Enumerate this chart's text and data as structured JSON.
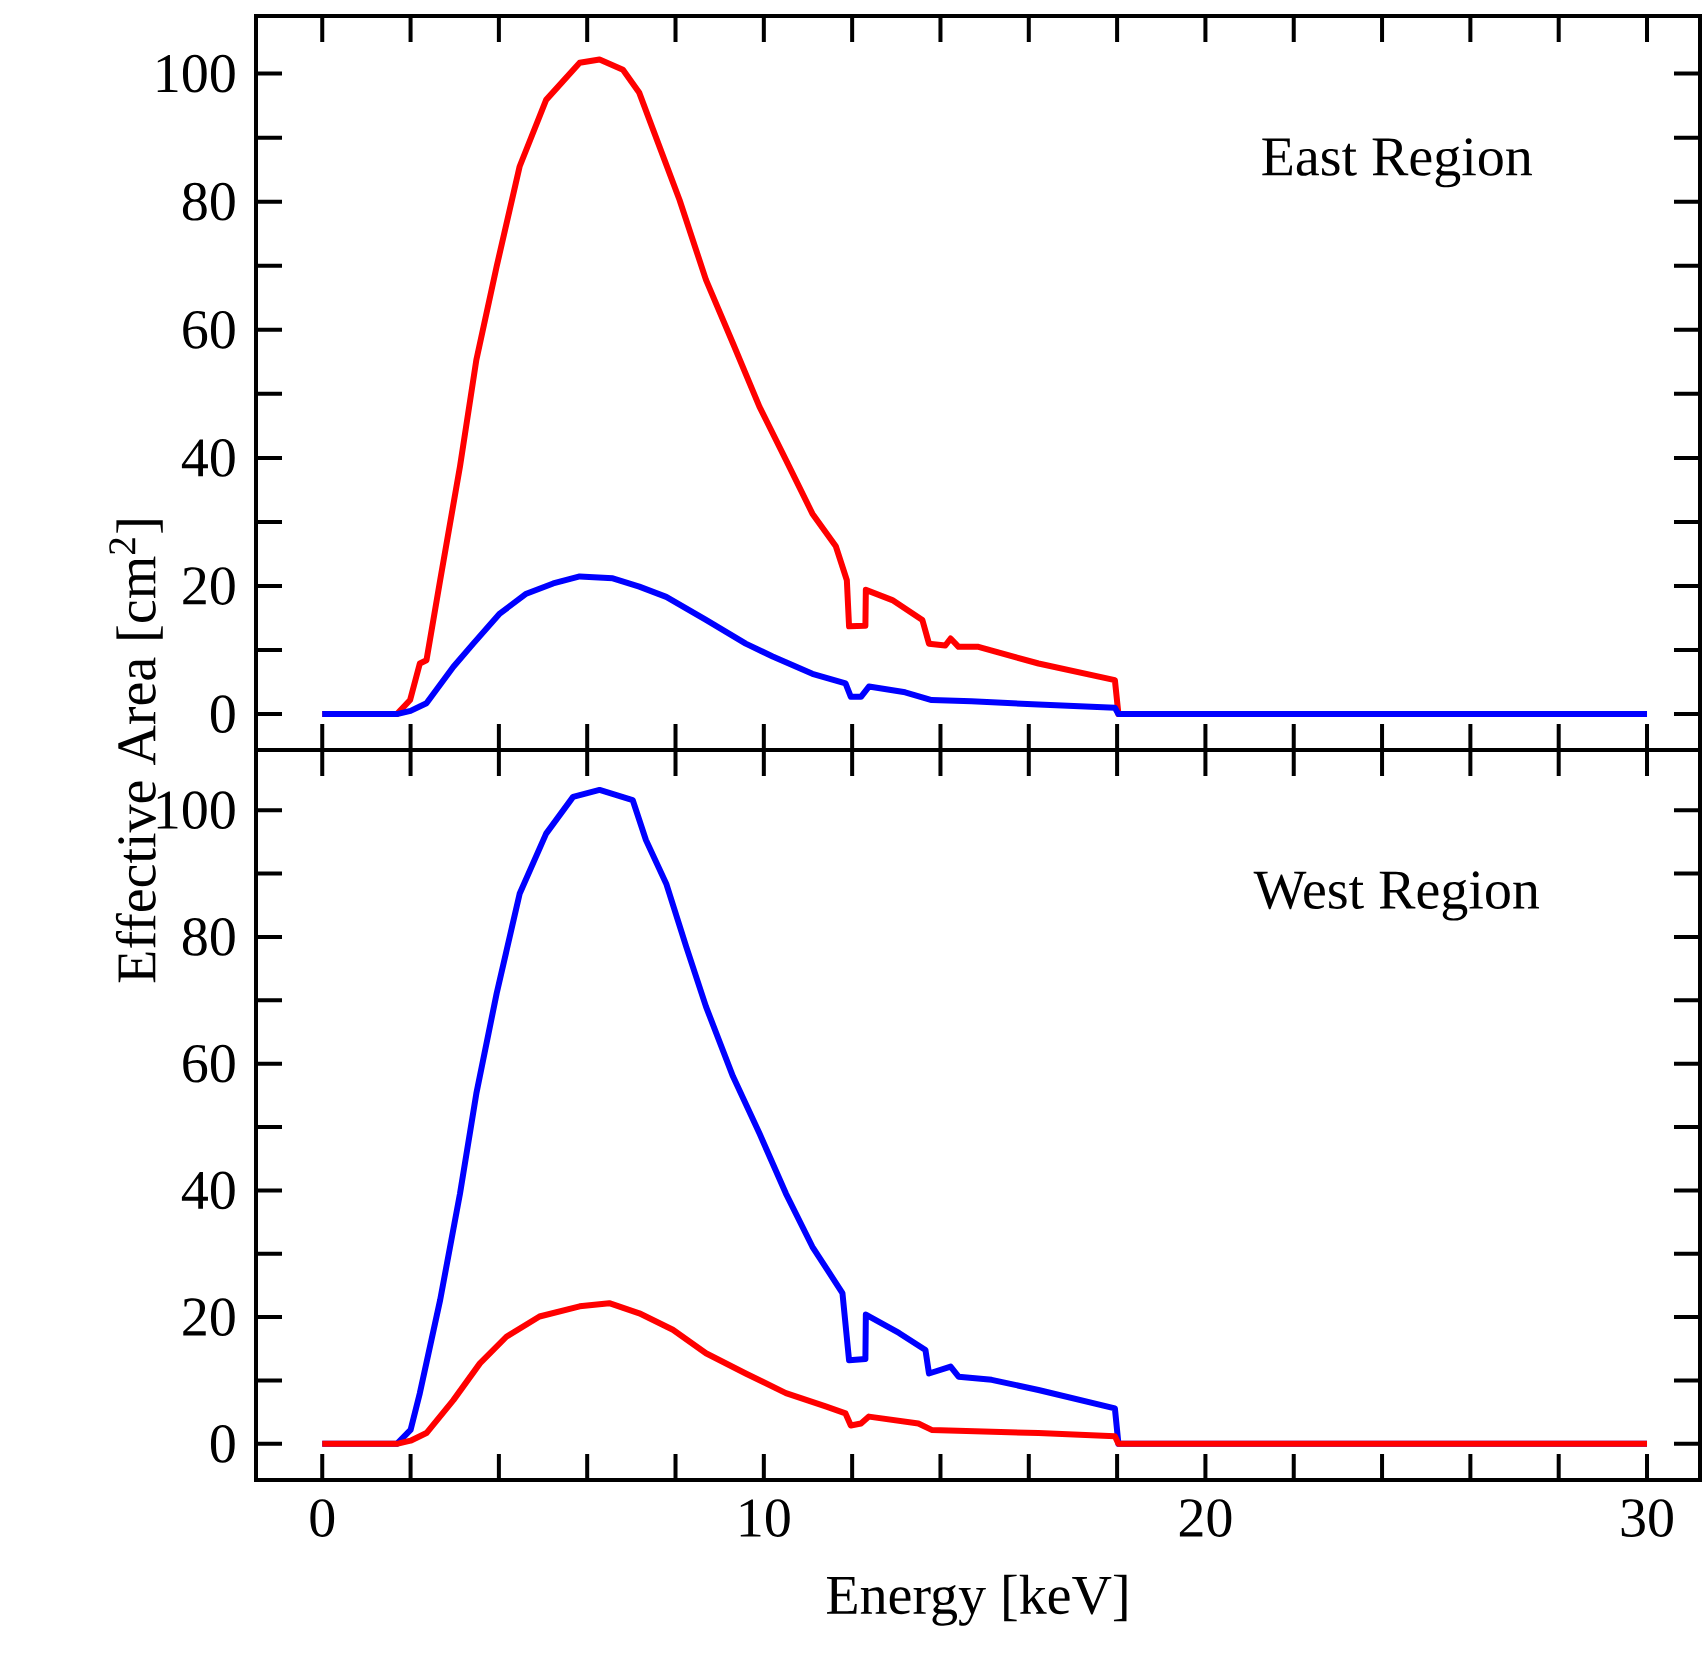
{
  "chart_data": [
    {
      "type": "line",
      "xlim": [
        -1.5,
        31.2
      ],
      "ylim": [
        -5.6,
        109
      ],
      "xticks": [
        0,
        {
          "value": 2,
          "label": null
        },
        {
          "value": 4,
          "label": null
        },
        {
          "value": 6,
          "label": null
        },
        {
          "value": 8,
          "label": null
        },
        10,
        {
          "value": 12,
          "label": null
        },
        {
          "value": 14,
          "label": null
        },
        {
          "value": 16,
          "label": null
        },
        {
          "value": 18,
          "label": null
        },
        20,
        {
          "value": 22,
          "label": null
        },
        {
          "value": 24,
          "label": null
        },
        {
          "value": 26,
          "label": null
        },
        {
          "value": 28,
          "label": null
        },
        30
      ],
      "yticks": [
        0,
        {
          "value": 10,
          "label": null
        },
        20,
        {
          "value": 30,
          "label": null
        },
        40,
        {
          "value": 50,
          "label": null
        },
        60,
        {
          "value": 70,
          "label": null
        },
        80,
        {
          "value": 90,
          "label": null
        },
        100
      ],
      "tick_labels": "y",
      "ylabel": "Effective Area [cm$^{2}$]",
      "annotations": [
        "East Region"
      ],
      "line_style": "solid",
      "marker": "none",
      "series": [
        {
          "color": "#ff0000",
          "x": [
            0,
            1.69,
            1.99,
            2.21,
            2.36,
            2.67,
            3.12,
            3.49,
            3.95,
            4.47,
            5.07,
            5.83,
            6.28,
            6.81,
            7.18,
            7.49,
            8.09,
            8.69,
            9.3,
            9.9,
            10.5,
            11.1,
            11.63,
            11.88,
            11.93,
            12.3,
            12.31,
            12.91,
            13.59,
            13.74,
            14.11,
            14.23,
            14.41,
            14.86,
            16.22,
            17.95,
            18.03,
            30
          ],
          "values": [
            0,
            0,
            2.2,
            7.9,
            8.4,
            20.9,
            38.7,
            55.3,
            69.9,
            85.5,
            95.9,
            101.7,
            102.2,
            100.6,
            97,
            91.3,
            80.3,
            67.8,
            57.9,
            48,
            39.7,
            31.3,
            26.2,
            20.9,
            13.7,
            13.8,
            19.4,
            17.8,
            14.7,
            11,
            10.7,
            11.8,
            10.5,
            10.5,
            7.9,
            5.3,
            0,
            0
          ]
        },
        {
          "color": "#0000ff",
          "x": [
            0,
            1.69,
            2.0,
            2.36,
            2.97,
            3.42,
            4.02,
            4.62,
            5.23,
            5.83,
            6.58,
            7.18,
            7.79,
            8.69,
            9.59,
            10.2,
            11.1,
            11.85,
            11.97,
            12.2,
            12.38,
            13.2,
            13.8,
            14.7,
            16.22,
            17.95,
            18.03,
            30
          ],
          "values": [
            0,
            0,
            0.5,
            1.7,
            7.4,
            11,
            15.7,
            18.8,
            20.4,
            21.5,
            21.2,
            19.9,
            18.3,
            14.7,
            11,
            9,
            6.3,
            4.8,
            2.7,
            2.7,
            4.3,
            3.4,
            2.2,
            2.0,
            1.5,
            1.0,
            0,
            0
          ]
        }
      ]
    },
    {
      "type": "line",
      "xlim": [
        -1.5,
        31.2
      ],
      "ylim": [
        -5.7,
        109.5
      ],
      "xticks": [
        0,
        {
          "value": 2,
          "label": null
        },
        {
          "value": 4,
          "label": null
        },
        {
          "value": 6,
          "label": null
        },
        {
          "value": 8,
          "label": null
        },
        10,
        {
          "value": 12,
          "label": null
        },
        {
          "value": 14,
          "label": null
        },
        {
          "value": 16,
          "label": null
        },
        {
          "value": 18,
          "label": null
        },
        20,
        {
          "value": 22,
          "label": null
        },
        {
          "value": 24,
          "label": null
        },
        {
          "value": 26,
          "label": null
        },
        {
          "value": 28,
          "label": null
        },
        30
      ],
      "yticks": [
        0,
        {
          "value": 10,
          "label": null
        },
        20,
        {
          "value": 30,
          "label": null
        },
        40,
        {
          "value": 50,
          "label": null
        },
        60,
        {
          "value": 70,
          "label": null
        },
        80,
        {
          "value": 90,
          "label": null
        },
        100
      ],
      "xlabel": "Energy [keV]",
      "annotations": [
        "West Region"
      ],
      "line_style": "solid",
      "marker": "none",
      "series": [
        {
          "color": "#0000ff",
          "x": [
            0,
            1.69,
            2.0,
            2.21,
            2.67,
            3.12,
            3.49,
            3.95,
            4.47,
            5.07,
            5.68,
            6.28,
            7.03,
            7.33,
            7.79,
            8.24,
            8.69,
            9.3,
            9.9,
            10.5,
            11.1,
            11.78,
            11.93,
            12.3,
            12.31,
            13.06,
            13.66,
            13.74,
            14.23,
            14.41,
            15.16,
            16.22,
            17.95,
            18.03,
            30
          ],
          "values": [
            0,
            0,
            2.2,
            8.0,
            22.7,
            39.5,
            55.3,
            71.1,
            86.8,
            96.3,
            102.1,
            103.2,
            101.6,
            95.3,
            88.4,
            78.5,
            69,
            58,
            49,
            39.5,
            31.1,
            23.8,
            13.2,
            13.4,
            20.4,
            17.5,
            14.8,
            11.1,
            12.2,
            10.6,
            10.1,
            8.5,
            5.6,
            0,
            0
          ]
        },
        {
          "color": "#ff0000",
          "x": [
            0,
            1.69,
            2.0,
            2.36,
            2.97,
            3.57,
            4.17,
            4.92,
            5.83,
            6.5,
            7.18,
            7.94,
            8.69,
            9.59,
            10.5,
            11.4,
            11.85,
            11.97,
            12.2,
            12.38,
            13.5,
            13.8,
            16.22,
            17.95,
            18.03,
            30
          ],
          "values": [
            0,
            0,
            0.5,
            1.7,
            6.9,
            12.7,
            16.9,
            20.1,
            21.7,
            22.2,
            20.6,
            18,
            14.3,
            11.1,
            8,
            5.9,
            4.8,
            2.9,
            3.2,
            4.3,
            3.2,
            2.2,
            1.7,
            1.2,
            0,
            0
          ]
        }
      ]
    }
  ]
}
